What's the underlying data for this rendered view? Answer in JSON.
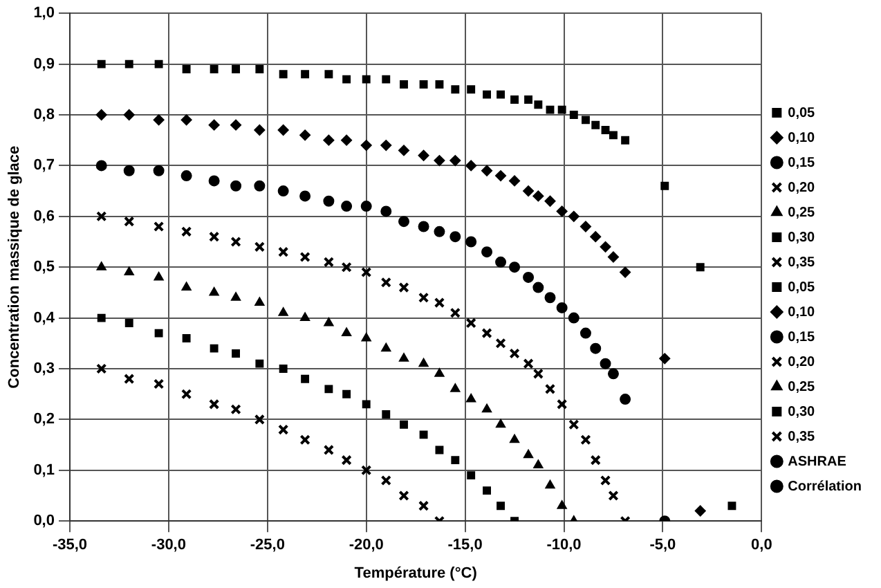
{
  "chart_data": {
    "type": "scatter",
    "xlabel": "Température (°C)",
    "ylabel": "Concentration massique de glace",
    "xlim": [
      -35,
      0
    ],
    "xticks": [
      {
        "value": -35,
        "label": "-35,0"
      },
      {
        "value": -30,
        "label": "-30,0"
      },
      {
        "value": -25,
        "label": "-25,0"
      },
      {
        "value": -20,
        "label": "-20,0"
      },
      {
        "value": -15,
        "label": "-15,0"
      },
      {
        "value": -10,
        "label": "-10,0"
      },
      {
        "value": -5,
        "label": "-5,0"
      },
      {
        "value": 0,
        "label": "0,0"
      }
    ],
    "ylim": [
      0,
      1
    ],
    "yticks": [
      {
        "value": 0,
        "label": "0,0"
      },
      {
        "value": 0.1,
        "label": "0,1"
      },
      {
        "value": 0.2,
        "label": "0,2"
      },
      {
        "value": 0.3,
        "label": "0,3"
      },
      {
        "value": 0.4,
        "label": "0,4"
      },
      {
        "value": 0.5,
        "label": "0,5"
      },
      {
        "value": 0.6,
        "label": "0,6"
      },
      {
        "value": 0.7,
        "label": "0,7"
      },
      {
        "value": 0.8,
        "label": "0,8"
      },
      {
        "value": 0.9,
        "label": "0,9"
      },
      {
        "value": 1,
        "label": "1,0"
      }
    ],
    "grid": true,
    "legend": "right",
    "series": [
      {
        "name": "0,05",
        "color": "#000000",
        "marker": "square",
        "x": [
          -33.4,
          -30.5,
          -27.7,
          -25.4,
          -23.1,
          -21.0,
          -19.0,
          -17.1,
          -15.5,
          -13.9,
          -12.5,
          -11.3,
          -10.1,
          -8.9,
          -7.9,
          -6.9
        ],
        "values": [
          0.9,
          0.9,
          0.89,
          0.89,
          0.88,
          0.87,
          0.87,
          0.86,
          0.85,
          0.84,
          0.83,
          0.82,
          0.81,
          0.79,
          0.77,
          0.75
        ]
      },
      {
        "name": "0,10",
        "color": "#000000",
        "marker": "diamond",
        "x": [
          -33.4,
          -30.5,
          -27.7,
          -25.4,
          -23.1,
          -21.0,
          -19.0,
          -17.1,
          -15.5,
          -13.9,
          -12.5,
          -11.3,
          -10.1,
          -8.9,
          -7.9,
          -6.9
        ],
        "values": [
          0.8,
          0.79,
          0.78,
          0.77,
          0.76,
          0.75,
          0.74,
          0.72,
          0.71,
          0.69,
          0.67,
          0.64,
          0.61,
          0.58,
          0.54,
          0.49
        ]
      },
      {
        "name": "0,15",
        "color": "#000000",
        "marker": "circle",
        "x": [
          -33.4,
          -30.5,
          -27.7,
          -25.4,
          -23.1,
          -21.0,
          -19.0,
          -17.1,
          -15.5,
          -13.9,
          -12.5,
          -11.3,
          -10.1,
          -8.9,
          -7.9,
          -6.9
        ],
        "values": [
          0.7,
          0.69,
          0.67,
          0.66,
          0.64,
          0.62,
          0.61,
          0.58,
          0.56,
          0.53,
          0.5,
          0.46,
          0.42,
          0.37,
          0.31,
          0.24
        ]
      },
      {
        "name": "0,20",
        "color": "#000000",
        "marker": "cross",
        "x": [
          -33.4,
          -30.5,
          -27.7,
          -25.4,
          -23.1,
          -21.0,
          -19.0,
          -17.1,
          -15.5,
          -13.9,
          -12.5,
          -11.3,
          -10.1,
          -8.9,
          -7.9,
          -6.9
        ],
        "values": [
          0.6,
          0.58,
          0.56,
          0.54,
          0.52,
          0.5,
          0.47,
          0.44,
          0.41,
          0.37,
          0.33,
          0.29,
          0.23,
          0.16,
          0.08,
          0.0
        ]
      },
      {
        "name": "0,25",
        "color": "#000000",
        "marker": "triangle",
        "x": [
          -33.4,
          -30.5,
          -27.7,
          -25.4,
          -23.1,
          -21.0,
          -19.0,
          -17.1,
          -15.5,
          -13.9,
          -12.5,
          -11.3,
          -10.1
        ],
        "values": [
          0.5,
          0.48,
          0.45,
          0.43,
          0.4,
          0.37,
          0.34,
          0.31,
          0.26,
          0.22,
          0.16,
          0.11,
          0.03
        ]
      },
      {
        "name": "0,30",
        "color": "#000000",
        "marker": "square",
        "x": [
          -33.4,
          -30.5,
          -27.7,
          -25.4,
          -23.1,
          -21.0,
          -19.0,
          -17.1,
          -15.5,
          -13.9,
          -12.5
        ],
        "values": [
          0.4,
          0.37,
          0.34,
          0.31,
          0.28,
          0.25,
          0.21,
          0.17,
          0.12,
          0.06,
          0.0
        ]
      },
      {
        "name": "0,35",
        "color": "#000000",
        "marker": "cross",
        "x": [
          -33.4,
          -30.5,
          -27.7,
          -25.4,
          -23.1,
          -21.0,
          -19.0,
          -17.1
        ],
        "values": [
          0.3,
          0.27,
          0.23,
          0.2,
          0.16,
          0.12,
          0.08,
          0.03
        ]
      },
      {
        "name": "0,05",
        "color": "#000000",
        "marker": "square",
        "x": [
          -32.0,
          -29.1,
          -26.6,
          -24.2,
          -21.9,
          -20.0,
          -18.1,
          -16.3,
          -14.7,
          -13.2,
          -11.8,
          -10.7,
          -9.5,
          -8.4,
          -7.5,
          -4.9,
          -3.1,
          -1.5
        ],
        "values": [
          0.9,
          0.89,
          0.89,
          0.88,
          0.88,
          0.87,
          0.86,
          0.86,
          0.85,
          0.84,
          0.83,
          0.81,
          0.8,
          0.78,
          0.76,
          0.66,
          0.5,
          0.03
        ]
      },
      {
        "name": "0,10",
        "color": "#000000",
        "marker": "diamond",
        "x": [
          -32.0,
          -29.1,
          -26.6,
          -24.2,
          -21.9,
          -20.0,
          -18.1,
          -16.3,
          -14.7,
          -13.2,
          -11.8,
          -10.7,
          -9.5,
          -8.4,
          -7.5,
          -4.9,
          -3.1
        ],
        "values": [
          0.8,
          0.79,
          0.78,
          0.77,
          0.75,
          0.74,
          0.73,
          0.71,
          0.7,
          0.68,
          0.65,
          0.63,
          0.6,
          0.56,
          0.52,
          0.32,
          0.02
        ]
      },
      {
        "name": "0,15",
        "color": "#000000",
        "marker": "circle",
        "x": [
          -32.0,
          -29.1,
          -26.6,
          -24.2,
          -21.9,
          -20.0,
          -18.1,
          -16.3,
          -14.7,
          -13.2,
          -11.8,
          -10.7,
          -9.5,
          -8.4,
          -7.5,
          -4.9
        ],
        "values": [
          0.69,
          0.68,
          0.66,
          0.65,
          0.63,
          0.62,
          0.59,
          0.57,
          0.55,
          0.51,
          0.48,
          0.44,
          0.4,
          0.34,
          0.29,
          0.0
        ]
      },
      {
        "name": "0,20",
        "color": "#000000",
        "marker": "cross",
        "x": [
          -32.0,
          -29.1,
          -26.6,
          -24.2,
          -21.9,
          -20.0,
          -18.1,
          -16.3,
          -14.7,
          -13.2,
          -11.8,
          -10.7,
          -9.5,
          -8.4,
          -7.5
        ],
        "values": [
          0.59,
          0.57,
          0.55,
          0.53,
          0.51,
          0.49,
          0.46,
          0.43,
          0.39,
          0.35,
          0.31,
          0.26,
          0.19,
          0.12,
          0.05
        ]
      },
      {
        "name": "0,25",
        "color": "#000000",
        "marker": "triangle",
        "x": [
          -32.0,
          -29.1,
          -26.6,
          -24.2,
          -21.9,
          -20.0,
          -18.1,
          -16.3,
          -14.7,
          -13.2,
          -11.8,
          -10.7,
          -9.5
        ],
        "values": [
          0.49,
          0.46,
          0.44,
          0.41,
          0.39,
          0.36,
          0.32,
          0.29,
          0.24,
          0.19,
          0.13,
          0.07,
          0.0
        ]
      },
      {
        "name": "0,30",
        "color": "#000000",
        "marker": "square",
        "x": [
          -32.0,
          -29.1,
          -26.6,
          -24.2,
          -21.9,
          -20.0,
          -18.1,
          -16.3,
          -14.7,
          -13.2
        ],
        "values": [
          0.39,
          0.36,
          0.33,
          0.3,
          0.26,
          0.23,
          0.19,
          0.14,
          0.09,
          0.03
        ]
      },
      {
        "name": "0,35",
        "color": "#000000",
        "marker": "cross",
        "x": [
          -32.0,
          -29.1,
          -26.6,
          -24.2,
          -21.9,
          -20.0,
          -18.1,
          -16.3
        ],
        "values": [
          0.28,
          0.25,
          0.22,
          0.18,
          0.14,
          0.1,
          0.05,
          0.0
        ]
      },
      {
        "name": "ASHRAE",
        "color": "#000000",
        "marker": "circle"
      },
      {
        "name": "Corrélation",
        "color": "#000000",
        "marker": "circle"
      }
    ]
  }
}
